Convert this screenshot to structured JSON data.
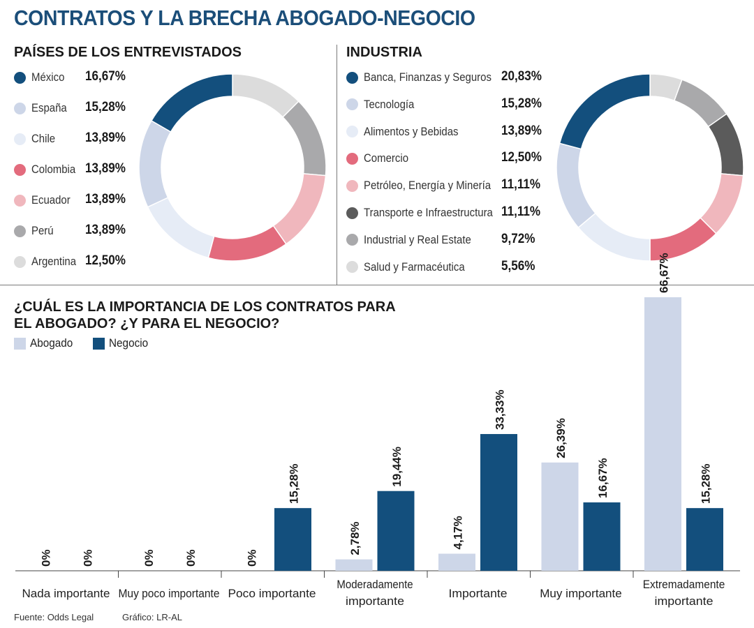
{
  "title": "CONTRATOS Y LA BRECHA ABOGADO-NEGOCIO",
  "colors": {
    "navy": "#134f7d",
    "light_blue": "#cdd6e8",
    "pale_blue": "#e6ecf6",
    "red": "#e36b7d",
    "pink": "#f0b7bd",
    "dark_gray": "#5b5b5b",
    "mid_gray": "#a9a9ab",
    "light_gray": "#dcdcdc"
  },
  "chart_data": [
    {
      "type": "pie",
      "title": "PAÍSES DE LOS ENTREVISTADOS",
      "labels": [
        "México",
        "España",
        "Chile",
        "Colombia",
        "Ecuador",
        "Perú",
        "Argentina"
      ],
      "values": [
        16.67,
        15.28,
        13.89,
        13.89,
        13.89,
        13.89,
        12.5
      ],
      "display": [
        "16,67%",
        "15,28%",
        "13,89%",
        "13,89%",
        "13,89%",
        "13,89%",
        "12,50%"
      ],
      "colors": [
        "#134f7d",
        "#cdd6e8",
        "#e6ecf6",
        "#e36b7d",
        "#f0b7bd",
        "#a9a9ab",
        "#dcdcdc"
      ]
    },
    {
      "type": "pie",
      "title": "INDUSTRIA",
      "labels": [
        "Banca, Finanzas y Seguros",
        "Tecnología",
        "Alimentos y Bebidas",
        "Comercio",
        "Petróleo, Energía y Minería",
        "Transporte e Infraestructura",
        "Industrial y Real Estate",
        "Salud y Farmacéutica"
      ],
      "values": [
        20.83,
        15.28,
        13.89,
        12.5,
        11.11,
        11.11,
        9.72,
        5.56
      ],
      "display": [
        "20,83%",
        "15,28%",
        "13,89%",
        "12,50%",
        "11,11%",
        "11,11%",
        "9,72%",
        "5,56%"
      ],
      "colors": [
        "#134f7d",
        "#cdd6e8",
        "#e6ecf6",
        "#e36b7d",
        "#f0b7bd",
        "#5b5b5b",
        "#a9a9ab",
        "#dcdcdc"
      ]
    },
    {
      "type": "bar",
      "title": "¿CUÁL ES LA IMPORTANCIA DE LOS CONTRATOS PARA EL ABOGADO? ¿Y PARA EL NEGOCIO?",
      "title_lines": [
        "¿CUÁL ES LA IMPORTANCIA DE LOS CONTRATOS PARA",
        "EL ABOGADO? ¿Y PARA EL NEGOCIO?"
      ],
      "categories": [
        [
          "Nada importante"
        ],
        [
          "Muy poco importante"
        ],
        [
          "Poco importante"
        ],
        [
          "Moderadamente",
          "importante"
        ],
        [
          "Importante"
        ],
        [
          "Muy importante"
        ],
        [
          "Extremadamente",
          "importante"
        ]
      ],
      "series": [
        {
          "name": "Abogado",
          "color": "#cdd6e8",
          "values": [
            0,
            0,
            0,
            2.78,
            4.17,
            26.39,
            66.67
          ],
          "labels": [
            "0%",
            "0%",
            "0%",
            "2,78%",
            "4,17%",
            "26,39%",
            "66,67%"
          ]
        },
        {
          "name": "Negocio",
          "color": "#134f7d",
          "values": [
            0,
            0,
            15.28,
            19.44,
            33.33,
            16.67,
            15.28
          ],
          "labels": [
            "0%",
            "0%",
            "15,28%",
            "19,44%",
            "33,33%",
            "16,67%",
            "15,28%"
          ]
        }
      ],
      "ylim": [
        0,
        66.67
      ]
    }
  ],
  "footer": {
    "source": "Fuente: Odds Legal",
    "credit": "Gráfico: LR-AL"
  }
}
